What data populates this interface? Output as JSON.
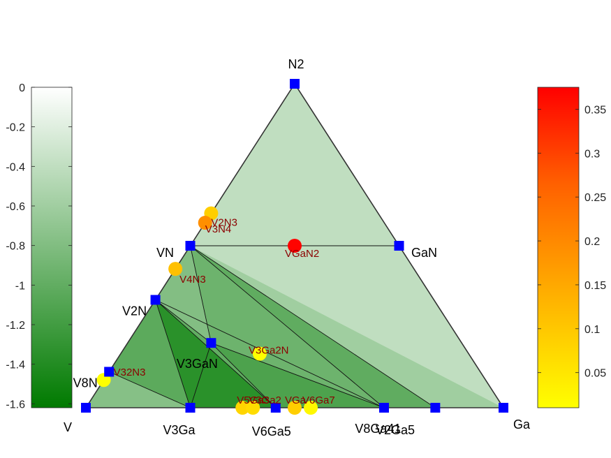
{
  "chart_data": {
    "type": "scatter",
    "subtype": "ternary-phase-diagram",
    "corners": [
      "V",
      "Ga",
      "N2"
    ],
    "stable_phases": [
      {
        "name": "V",
        "ga": 0.0,
        "n": 0.0
      },
      {
        "name": "Ga",
        "ga": 1.0,
        "n": 0.0
      },
      {
        "name": "N2",
        "ga": 0.0,
        "n": 1.0
      },
      {
        "name": "VN",
        "ga": 0.0,
        "n": 0.5,
        "energy": -0.8
      },
      {
        "name": "GaN",
        "ga": 0.5,
        "n": 0.5,
        "energy": -0.8
      },
      {
        "name": "V2N",
        "ga": 0.0,
        "n": 0.333,
        "energy": -1.08
      },
      {
        "name": "V8N",
        "ga": 0.0,
        "n": 0.111,
        "energy": -1.44
      },
      {
        "name": "V3GaN",
        "ga": 0.2,
        "n": 0.2,
        "energy": -1.29
      },
      {
        "name": "V3Ga",
        "ga": 0.25,
        "n": 0.0,
        "energy": -1.62
      },
      {
        "name": "V6Ga5",
        "ga": 0.4545,
        "n": 0.0,
        "energy": -1.62
      },
      {
        "name": "V2Ga5",
        "ga": 0.714,
        "n": 0.0,
        "energy": -1.62
      },
      {
        "name": "V8Ga41",
        "ga": 0.8367,
        "n": 0.0,
        "energy": -1.62
      }
    ],
    "unstable_phases": [
      {
        "name": "V2N3",
        "ga": 0.0,
        "n": 0.6,
        "e_above_hull": 0.08
      },
      {
        "name": "V3N4",
        "ga": 0.0,
        "n": 0.571,
        "e_above_hull": 0.17
      },
      {
        "name": "VGaN2",
        "ga": 0.25,
        "n": 0.5,
        "e_above_hull": 0.37
      },
      {
        "name": "V4N3",
        "ga": 0.0,
        "n": 0.4286,
        "e_above_hull": 0.1
      },
      {
        "name": "V3Ga2N",
        "ga": 0.333,
        "n": 0.1667,
        "e_above_hull": 0.01
      },
      {
        "name": "V32N3",
        "ga": 0.0,
        "n": 0.0857,
        "e_above_hull": 0.01
      },
      {
        "name": "V5Ga3",
        "ga": 0.375,
        "n": 0.0,
        "e_above_hull": 0.07
      },
      {
        "name": "V3Ga2",
        "ga": 0.4,
        "n": 0.0,
        "e_above_hull": 0.06
      },
      {
        "name": "VGa",
        "ga": 0.5,
        "n": 0.0,
        "e_above_hull": 0.08
      },
      {
        "name": "V6Ga7",
        "ga": 0.5385,
        "n": 0.0,
        "e_above_hull": 0.02
      }
    ],
    "tie_lines": [
      [
        "VN",
        "GaN"
      ],
      [
        "VN",
        "V2Ga5"
      ],
      [
        "VN",
        "V8Ga41"
      ],
      [
        "VN",
        "V3GaN"
      ],
      [
        "VN",
        "V2N"
      ],
      [
        "V2N",
        "V3GaN"
      ],
      [
        "V2N",
        "V3Ga"
      ],
      [
        "V2N",
        "V6Ga5"
      ],
      [
        "V2N",
        "V2Ga5"
      ],
      [
        "V2N",
        "V8N"
      ],
      [
        "V3GaN",
        "V3Ga"
      ],
      [
        "V3GaN",
        "V6Ga5"
      ],
      [
        "V3GaN",
        "V2Ga5"
      ],
      [
        "V8N",
        "V3Ga"
      ]
    ],
    "left_colorbar": {
      "ticks": [
        "0",
        "-0.2",
        "-0.4",
        "-0.6",
        "-0.8",
        "-1",
        "-1.2",
        "-1.4",
        "-1.6"
      ],
      "range": [
        -1.62,
        0
      ],
      "colors": [
        "#ffffff",
        "#007a00"
      ]
    },
    "right_colorbar": {
      "ticks": [
        "0.35",
        "0.3",
        "0.25",
        "0.2",
        "0.15",
        "0.1",
        "0.05"
      ],
      "range": [
        0.01,
        0.375
      ],
      "colors": [
        "#ffff00",
        "#ffa500",
        "#ff0000"
      ]
    },
    "marker_color_stable": "#0000ff",
    "edge_color": "#000000"
  }
}
